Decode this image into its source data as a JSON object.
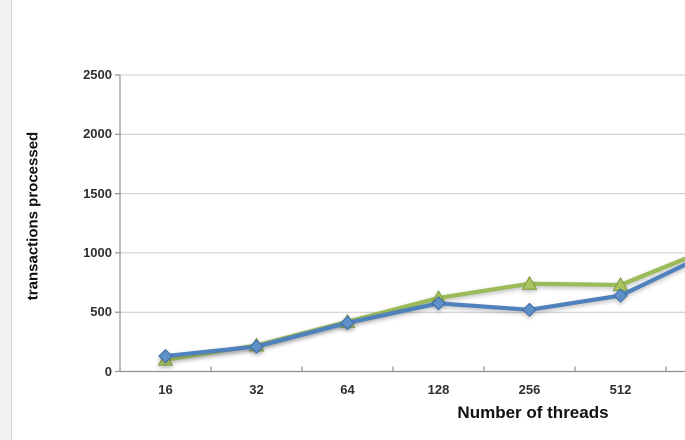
{
  "page": {
    "background": "#ffffff",
    "left_strip_color": "#f1f1f1"
  },
  "colors": {
    "gridline": "#c8c8c8",
    "axis_line": "#909090",
    "tick_label": "#2f2f2f",
    "axis_title": "#111111"
  },
  "chart_data": {
    "type": "line",
    "title": "",
    "xlabel": "Number of threads",
    "ylabel": "transactions processed",
    "categories": [
      "16",
      "32",
      "64",
      "128",
      "256",
      "512"
    ],
    "series": [
      {
        "id": "green-triangle-series",
        "marker": "triangle",
        "color": "#9bbb59",
        "marker_fill": "#a9c55f",
        "marker_stroke": "#7e9a3d",
        "values": [
          100,
          220,
          420,
          620,
          740,
          730
        ],
        "value_at_right_crop": 950
      },
      {
        "id": "blue-diamond-series",
        "marker": "diamond",
        "color": "#4f81bd",
        "marker_fill": "#5f90ca",
        "marker_stroke": "#3a6ba5",
        "values": [
          130,
          210,
          410,
          575,
          520,
          640
        ],
        "value_at_right_crop": 900
      }
    ],
    "yticks": [
      0,
      500,
      1000,
      1500,
      2000,
      2500
    ],
    "ylim": [
      0,
      2500
    ],
    "gridlines": "horizontal",
    "legend": "none",
    "cropped_right": true
  }
}
